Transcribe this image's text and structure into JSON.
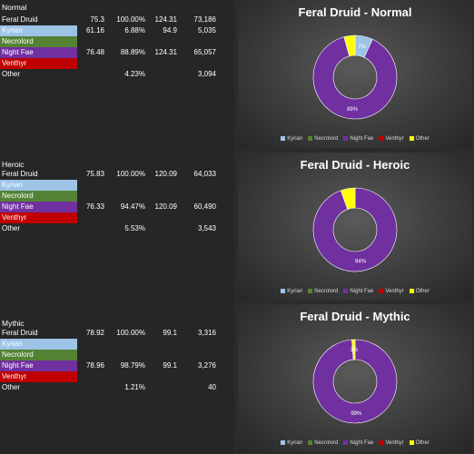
{
  "colors": {
    "kyrian": "#9dc3e6",
    "necrolord": "#548235",
    "night_fae": "#7030a0",
    "venthyr": "#c00000",
    "other": "#ffff00"
  },
  "tables": [
    {
      "title": "Normal",
      "rows": [
        {
          "name": "Feral Druid",
          "c1": "75.3",
          "c2": "100.00%",
          "c3": "124.31",
          "c4": "73,186"
        },
        {
          "name": "Kyrian",
          "c1": "61.16",
          "c2": "6.88%",
          "c3": "94.9",
          "c4": "5,035"
        },
        {
          "name": "Necrolord",
          "c1": "",
          "c2": "",
          "c3": "",
          "c4": ""
        },
        {
          "name": "Night Fae",
          "c1": "76.48",
          "c2": "88.89%",
          "c3": "124.31",
          "c4": "65,057"
        },
        {
          "name": "Venthyr",
          "c1": "",
          "c2": "",
          "c3": "",
          "c4": ""
        },
        {
          "name": "Other",
          "c1": "",
          "c2": "4.23%",
          "c3": "",
          "c4": "3,094"
        }
      ]
    },
    {
      "title": "Heroic",
      "rows": [
        {
          "name": "Feral Druid",
          "c1": "75.83",
          "c2": "100.00%",
          "c3": "120.09",
          "c4": "64,033"
        },
        {
          "name": "Kyrian",
          "c1": "",
          "c2": "",
          "c3": "",
          "c4": ""
        },
        {
          "name": "Necrolord",
          "c1": "",
          "c2": "",
          "c3": "",
          "c4": ""
        },
        {
          "name": "Night Fae",
          "c1": "76.33",
          "c2": "94.47%",
          "c3": "120.09",
          "c4": "60,490"
        },
        {
          "name": "Venthyr",
          "c1": "",
          "c2": "",
          "c3": "",
          "c4": ""
        },
        {
          "name": "Other",
          "c1": "",
          "c2": "5.53%",
          "c3": "",
          "c4": "3,543"
        }
      ]
    },
    {
      "title": "Mythic",
      "rows": [
        {
          "name": "Feral Druid",
          "c1": "78.92",
          "c2": "100.00%",
          "c3": "99.1",
          "c4": "3,316"
        },
        {
          "name": "Kyrian",
          "c1": "",
          "c2": "",
          "c3": "",
          "c4": ""
        },
        {
          "name": "Necrolord",
          "c1": "",
          "c2": "",
          "c3": "",
          "c4": ""
        },
        {
          "name": "Night Fae",
          "c1": "78.96",
          "c2": "98.79%",
          "c3": "99.1",
          "c4": "3,276"
        },
        {
          "name": "Venthyr",
          "c1": "",
          "c2": "",
          "c3": "",
          "c4": ""
        },
        {
          "name": "Other",
          "c1": "",
          "c2": "1.21%",
          "c3": "",
          "c4": "40"
        }
      ]
    }
  ],
  "chart_data": [
    {
      "type": "pie",
      "title": "Feral Druid - Normal",
      "categories": [
        "Kyrian",
        "Necrolord",
        "Night Fae",
        "Venthyr",
        "Other"
      ],
      "values": [
        6.88,
        0,
        88.89,
        0,
        4.23
      ],
      "labels": [
        "7%",
        "",
        "89%",
        "",
        ""
      ],
      "legend": "bottom"
    },
    {
      "type": "pie",
      "title": "Feral Druid - Heroic",
      "categories": [
        "Kyrian",
        "Necrolord",
        "Night Fae",
        "Venthyr",
        "Other"
      ],
      "values": [
        0,
        0,
        94.47,
        0,
        5.53
      ],
      "labels": [
        "",
        "",
        "94%",
        "",
        ""
      ],
      "legend": "bottom"
    },
    {
      "type": "pie",
      "title": "Feral Druid - Mythic",
      "categories": [
        "Kyrian",
        "Necrolord",
        "Night Fae",
        "Venthyr",
        "Other"
      ],
      "values": [
        0,
        0,
        98.79,
        0,
        1.21
      ],
      "labels": [
        "",
        "",
        "99%",
        "",
        "1%"
      ],
      "legend": "bottom"
    }
  ]
}
